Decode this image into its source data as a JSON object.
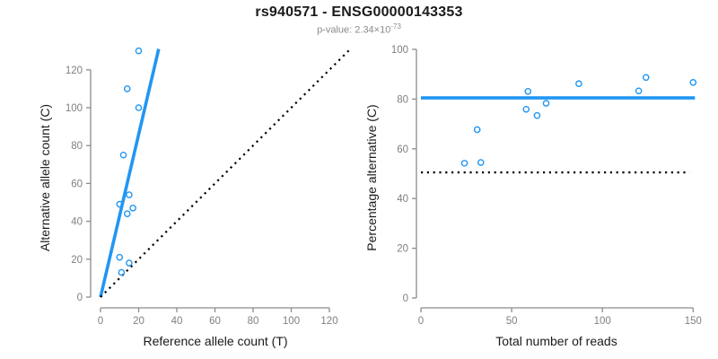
{
  "header": {
    "title": "rs940571 - ENSG00000143353",
    "p_value_text": "p-value: 2.34×10",
    "p_value_exponent": "-73"
  },
  "colors": {
    "accent": "#2196f3",
    "black": "#000000",
    "axis": "#8c8c8c",
    "tick_label": "#808080",
    "axis_title": "#1a1a1a",
    "title": "#1a1a1a",
    "subtitle": "#8a8a8a"
  },
  "chart_data": [
    {
      "type": "scatter",
      "panel": "left",
      "title": "",
      "xlabel": "Reference allele count (T)",
      "ylabel": "Alternative allele count (C)",
      "xlim": [
        0,
        131
      ],
      "ylim": [
        0,
        131
      ],
      "xticks": [
        0,
        20,
        40,
        60,
        80,
        100,
        120
      ],
      "yticks": [
        0,
        20,
        40,
        60,
        80,
        100,
        120
      ],
      "grid": false,
      "legend": "none",
      "points": [
        [
          20,
          130
        ],
        [
          14,
          110
        ],
        [
          20,
          100
        ],
        [
          12,
          75
        ],
        [
          15,
          54
        ],
        [
          10,
          49
        ],
        [
          17,
          47
        ],
        [
          14,
          44
        ],
        [
          10,
          21
        ],
        [
          15,
          18
        ],
        [
          11,
          13
        ]
      ],
      "lines": [
        {
          "name": "regression-line",
          "style": "solid",
          "color": "accent",
          "x1": 0,
          "y1": 0,
          "x2": 30.5,
          "y2": 131
        },
        {
          "name": "identity-line",
          "style": "dotted",
          "color": "black",
          "x1": 0,
          "y1": 0,
          "x2": 131,
          "y2": 131
        }
      ]
    },
    {
      "type": "scatter",
      "panel": "right",
      "title": "",
      "xlabel": "Total number of reads",
      "ylabel": "Percentage alternative (C)",
      "xlim": [
        0,
        151
      ],
      "ylim": [
        0,
        100
      ],
      "xticks": [
        0,
        50,
        100,
        150
      ],
      "yticks": [
        0,
        20,
        40,
        60,
        80,
        100
      ],
      "grid": false,
      "legend": "none",
      "points": [
        [
          150,
          86.7
        ],
        [
          124,
          88.7
        ],
        [
          120,
          83.3
        ],
        [
          87,
          86.2
        ],
        [
          69,
          78.3
        ],
        [
          59,
          83.1
        ],
        [
          64,
          73.4
        ],
        [
          58,
          75.9
        ],
        [
          31,
          67.7
        ],
        [
          33,
          54.5
        ],
        [
          24,
          54.2
        ]
      ],
      "lines": [
        {
          "name": "mean-percentage-line",
          "style": "solid",
          "color": "accent",
          "x1": 0,
          "y1": 80.5,
          "x2": 151,
          "y2": 80.5
        },
        {
          "name": "fifty-percent-line",
          "style": "dotted",
          "color": "black",
          "x1": 0,
          "y1": 50.5,
          "x2": 148,
          "y2": 50.5
        }
      ]
    }
  ]
}
